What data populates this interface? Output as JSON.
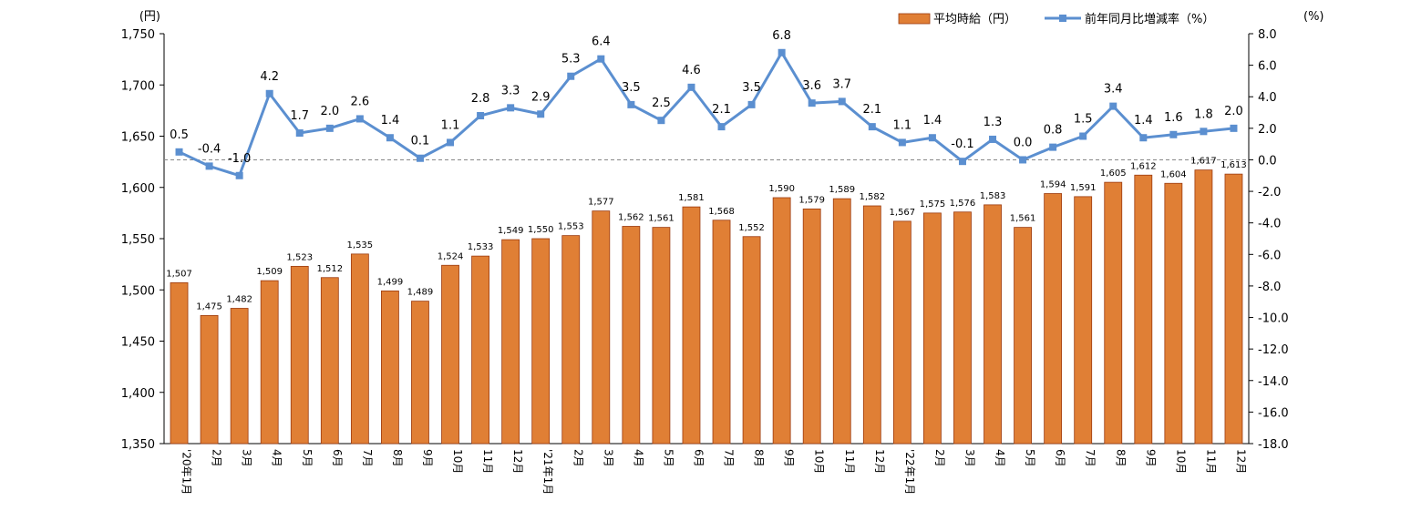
{
  "chart_data": {
    "type": "bar",
    "categories": [
      "'20年1月",
      "2月",
      "3月",
      "4月",
      "5月",
      "6月",
      "7月",
      "8月",
      "9月",
      "10月",
      "11月",
      "12月",
      "'21年1月",
      "2月",
      "3月",
      "4月",
      "5月",
      "6月",
      "7月",
      "8月",
      "9月",
      "10月",
      "11月",
      "12月",
      "'22年1月",
      "2月",
      "3月",
      "4月",
      "5月",
      "6月",
      "7月",
      "8月",
      "9月",
      "10月",
      "11月",
      "12月"
    ],
    "series": [
      {
        "name": "平均時給（円）",
        "type": "bar",
        "axis": "left",
        "color": "#E07F35",
        "values": [
          1507,
          1475,
          1482,
          1509,
          1523,
          1512,
          1535,
          1499,
          1489,
          1524,
          1533,
          1549,
          1550,
          1553,
          1577,
          1562,
          1561,
          1581,
          1568,
          1552,
          1590,
          1579,
          1589,
          1582,
          1567,
          1575,
          1576,
          1583,
          1561,
          1594,
          1591,
          1605,
          1612,
          1604,
          1617,
          1613
        ]
      },
      {
        "name": "前年同月比増減率（%）",
        "type": "line",
        "axis": "right",
        "color": "#5B8FD0",
        "values": [
          0.5,
          -0.4,
          -1.0,
          4.2,
          1.7,
          2.0,
          2.6,
          1.4,
          0.1,
          1.1,
          2.8,
          3.3,
          2.9,
          5.3,
          6.4,
          3.5,
          2.5,
          4.6,
          2.1,
          3.5,
          6.8,
          3.6,
          3.7,
          2.1,
          1.1,
          1.4,
          -0.1,
          1.3,
          0.0,
          0.8,
          1.5,
          3.4,
          1.4,
          1.6,
          1.8,
          2.0
        ]
      }
    ],
    "left_axis": {
      "unit": "(円)",
      "ylim": [
        1350,
        1750
      ],
      "ticks": [
        1350,
        1400,
        1450,
        1500,
        1550,
        1600,
        1650,
        1700,
        1750
      ]
    },
    "right_axis": {
      "unit": "(%)",
      "ylim": [
        -18.0,
        8.0
      ],
      "ticks": [
        -18.0,
        -16.0,
        -14.0,
        -12.0,
        -10.0,
        -8.0,
        -6.0,
        -4.0,
        -2.0,
        0.0,
        2.0,
        4.0,
        6.0,
        8.0
      ]
    },
    "legend_position": "top-right",
    "zero_line": "dashed"
  }
}
